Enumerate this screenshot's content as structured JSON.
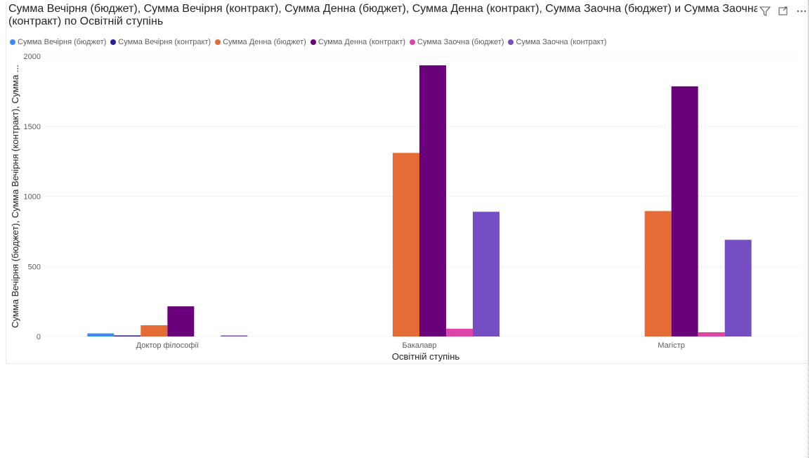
{
  "visual": {
    "title": "Сумма Вечірня (бюджет), Сумма Вечірня (контракт), Сумма Денна (бюджет), Сумма Денна (контракт), Сумма Заочна (бюджет) и Сумма Заочна (контракт) по Освітній ступінь",
    "icons": [
      "filter-icon",
      "focus-mode-icon",
      "more-options-icon"
    ]
  },
  "chart_data": {
    "type": "bar",
    "title": "Сумма Вечірня (бюджет), Сумма Вечірня (контракт), Сумма Денна (бюджет), Сумма Денна (контракт), Сумма Заочна (бюджет) и Сумма Заочна (контракт) по Освітній ступінь",
    "xlabel": "Освітній ступінь",
    "ylabel": "Сумма Вечірня (бюджет), Сумма Вечірня (контракт), Сумма ...",
    "categories": [
      "Доктор філософії",
      "Бакалавр",
      "Магістр"
    ],
    "ylim": [
      0,
      2000
    ],
    "yticks": [
      "0",
      "500",
      "1000",
      "1500",
      "2000"
    ],
    "grid": true,
    "legend_position": "top-left",
    "series": [
      {
        "name": "Сумма Вечірня (бюджет)",
        "color": "#3a8bf0",
        "values": [
          22,
          0,
          0
        ]
      },
      {
        "name": "Сумма Вечірня (контракт)",
        "color": "#2b1e9e",
        "values": [
          5,
          0,
          0
        ]
      },
      {
        "name": "Сумма Денна (бюджет)",
        "color": "#e66c37",
        "values": [
          80,
          1310,
          895
        ]
      },
      {
        "name": "Сумма Денна (контракт)",
        "color": "#6b007b",
        "values": [
          215,
          1935,
          1785
        ]
      },
      {
        "name": "Сумма Заочна (бюджет)",
        "color": "#e044a7",
        "values": [
          0,
          55,
          30
        ]
      },
      {
        "name": "Сумма Заочна (контракт)",
        "color": "#744ec2",
        "values": [
          7,
          890,
          690
        ]
      }
    ]
  }
}
